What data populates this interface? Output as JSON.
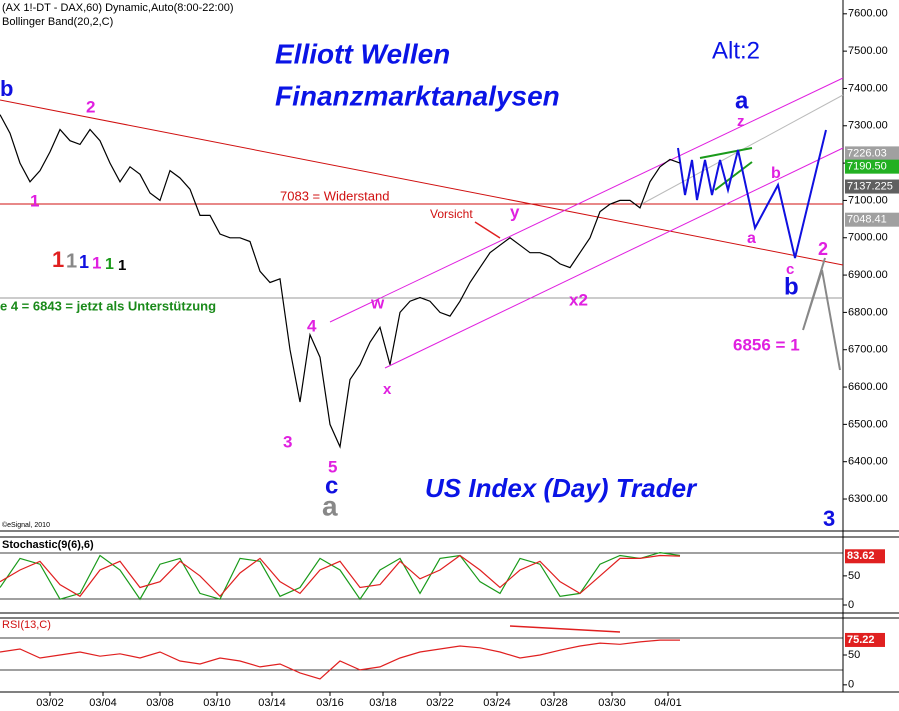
{
  "chart_data": [
    {
      "type": "line",
      "title": "(AX 1!-DT - DAX,60) Dynamic,Auto(8:00-22:00)",
      "subtitle": "Bollinger Band(20,2,C)",
      "color": "#000000",
      "x": [
        0,
        1,
        2,
        3,
        4,
        5,
        6,
        7,
        8,
        9,
        10,
        11,
        12,
        13,
        14,
        15,
        16,
        17,
        18,
        19,
        20,
        21,
        22,
        23,
        24,
        25,
        26,
        27,
        28,
        29,
        30,
        31,
        32,
        33,
        34,
        35,
        36,
        37,
        38,
        39,
        40,
        41,
        42,
        43,
        44,
        45,
        46,
        47,
        48,
        49,
        50,
        51,
        52,
        53,
        54,
        55,
        56,
        57,
        58,
        59,
        60,
        61,
        62,
        63,
        64,
        65,
        66,
        67,
        68
      ],
      "values": [
        7330,
        7280,
        7200,
        7150,
        7180,
        7230,
        7290,
        7260,
        7250,
        7290,
        7260,
        7200,
        7150,
        7190,
        7170,
        7120,
        7100,
        7180,
        7160,
        7130,
        7060,
        7060,
        7010,
        7000,
        7000,
        6990,
        6910,
        6880,
        6890,
        6700,
        6560,
        6740,
        6680,
        6500,
        6440,
        6620,
        6660,
        6720,
        6760,
        6660,
        6800,
        6830,
        6840,
        6830,
        6800,
        6790,
        6830,
        6880,
        6920,
        6960,
        6980,
        7000,
        6980,
        6960,
        6960,
        6950,
        6930,
        6920,
        6960,
        7000,
        7070,
        7090,
        7100,
        7100,
        7080,
        7150,
        7190,
        7210,
        7200
      ],
      "xlim": [
        0,
        84.3
      ],
      "ylim": [
        6217,
        7637
      ],
      "yticks": [
        {
          "value": 6300,
          "label": "6300.00"
        },
        {
          "value": 6400,
          "label": "6400.00"
        },
        {
          "value": 6500,
          "label": "6500.00"
        },
        {
          "value": 6600,
          "label": "6600.00"
        },
        {
          "value": 6700,
          "label": "6700.00"
        },
        {
          "value": 6800,
          "label": "6800.00"
        },
        {
          "value": 6900,
          "label": "6900.00"
        },
        {
          "value": 7000,
          "label": "7000.00"
        },
        {
          "value": 7100,
          "label": "7100.00"
        },
        {
          "value": 7200,
          "label": "7200.00"
        },
        {
          "value": 7300,
          "label": "7300.00"
        },
        {
          "value": 7400,
          "label": "7400.00"
        },
        {
          "value": 7500,
          "label": "7500.00"
        },
        {
          "value": 7600,
          "label": "7600.00"
        }
      ],
      "xticks": [
        {
          "value": 5,
          "label": "03/02"
        },
        {
          "value": 10.3,
          "label": "03/04"
        },
        {
          "value": 16,
          "label": "03/08"
        },
        {
          "value": 21.7,
          "label": "03/10"
        },
        {
          "value": 27.2,
          "label": "03/14"
        },
        {
          "value": 33,
          "label": "03/16"
        },
        {
          "value": 38.3,
          "label": "03/18"
        },
        {
          "value": 44,
          "label": "03/22"
        },
        {
          "value": 49.7,
          "label": "03/24"
        },
        {
          "value": 55.4,
          "label": "03/28"
        },
        {
          "value": 61.2,
          "label": "03/30"
        },
        {
          "value": 66.8,
          "label": "04/01"
        }
      ],
      "price_markers": [
        {
          "value": 7226.03,
          "label": "7226.03",
          "color": "#a0a0a0"
        },
        {
          "value": 7190.5,
          "label": "7190.50",
          "color": "#22b022"
        },
        {
          "value": 7137.225,
          "label": "7137.225",
          "color": "#606060"
        },
        {
          "value": 7048.41,
          "label": "7048.41",
          "color": "#a0a0a0"
        }
      ],
      "annotations": [
        "Elliott Wellen",
        "Finanzmarktanalysen",
        "Alt:2",
        "US Index (Day) Trader",
        "7083 = Widerstand",
        "Vorsicht",
        "e 4 = 6843 = jetzt als Unterstützung",
        "6856 = 1",
        "©eSignal, 2010"
      ],
      "wave_labels": [
        "b",
        "2",
        "1",
        "4",
        "3",
        "5",
        "c",
        "a",
        "w",
        "x",
        "y",
        "x2",
        "a",
        "z",
        "a",
        "b",
        "c",
        "2",
        "b",
        "3",
        "1",
        "1",
        "1",
        "1",
        "1",
        "1"
      ]
    },
    {
      "type": "line",
      "title": "Stochastic(9(6),6)",
      "x": [
        0,
        2,
        4,
        6,
        8,
        10,
        12,
        14,
        16,
        18,
        20,
        22,
        24,
        26,
        28,
        30,
        32,
        34,
        36,
        38,
        40,
        42,
        44,
        46,
        48,
        50,
        52,
        54,
        56,
        58,
        60,
        62,
        64,
        66,
        68
      ],
      "series": [
        {
          "color": "#1a9a1a",
          "values": [
            30,
            80,
            70,
            10,
            20,
            85,
            60,
            10,
            70,
            80,
            20,
            10,
            80,
            75,
            15,
            30,
            80,
            60,
            10,
            60,
            80,
            20,
            80,
            85,
            40,
            20,
            80,
            70,
            15,
            20,
            70,
            85,
            80,
            90,
            85
          ]
        },
        {
          "color": "#e02020",
          "values": [
            40,
            60,
            75,
            35,
            15,
            60,
            75,
            30,
            40,
            75,
            50,
            15,
            55,
            80,
            40,
            20,
            60,
            75,
            30,
            35,
            75,
            45,
            60,
            85,
            60,
            30,
            60,
            75,
            40,
            20,
            50,
            80,
            80,
            85,
            84
          ]
        }
      ],
      "xlim": [
        0,
        84.3
      ],
      "ylim": [
        -12,
        115
      ],
      "yticks": [
        0,
        50
      ],
      "last_value": 83.62
    },
    {
      "type": "line",
      "title": "RSI(13,C)",
      "x": [
        0,
        2,
        4,
        6,
        8,
        10,
        12,
        14,
        16,
        18,
        20,
        22,
        24,
        26,
        28,
        30,
        32,
        34,
        36,
        38,
        40,
        42,
        44,
        46,
        48,
        50,
        52,
        54,
        56,
        58,
        60,
        62,
        64,
        66,
        68
      ],
      "series": [
        {
          "color": "#e02020",
          "values": [
            55,
            60,
            45,
            50,
            55,
            48,
            52,
            45,
            55,
            40,
            35,
            45,
            40,
            30,
            35,
            20,
            10,
            40,
            25,
            30,
            45,
            55,
            60,
            65,
            62,
            55,
            45,
            50,
            58,
            65,
            70,
            68,
            72,
            75,
            75
          ]
        }
      ],
      "xlim": [
        0,
        84.3
      ],
      "ylim": [
        -12,
        112
      ],
      "yticks": [
        0,
        50
      ],
      "last_value": 75.22
    }
  ]
}
